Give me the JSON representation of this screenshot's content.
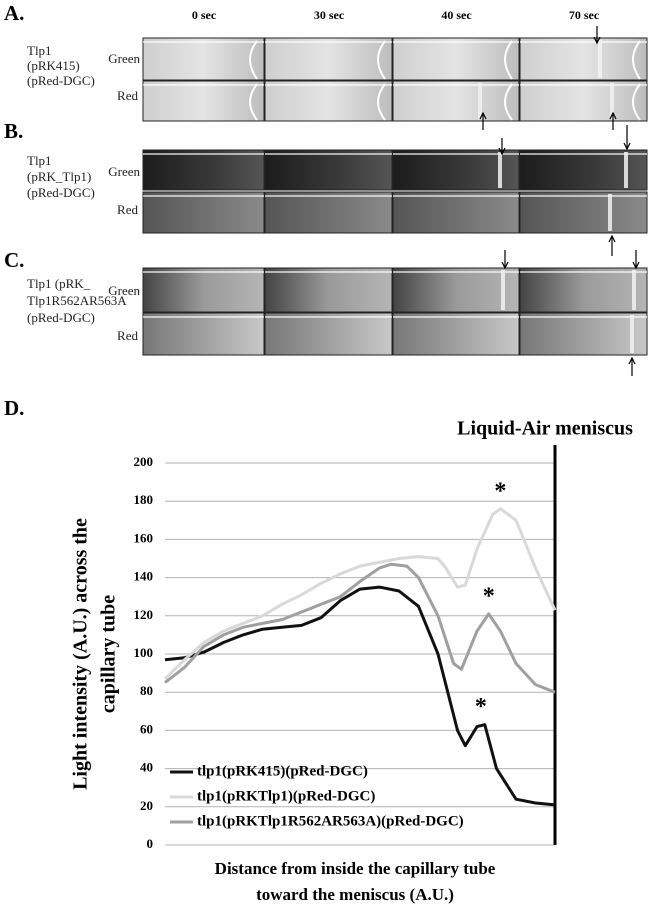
{
  "panels": {
    "A": {
      "label": "A.",
      "strain": [
        "Tlp1",
        "(pRK415)",
        "(pRed-DGC)"
      ]
    },
    "B": {
      "label": "B.",
      "strain": [
        "Tlp1",
        "(pRK_Tlp1)",
        "(pRed-DGC)"
      ]
    },
    "C": {
      "label": "C.",
      "strain": [
        "Tlp1 (pRK_",
        "Tlp1R562AR563A",
        "(pRed-DGC)"
      ]
    },
    "D": {
      "label": "D."
    },
    "times": [
      "0 sec",
      "30 sec",
      "40 sec",
      "70 sec"
    ],
    "channels": [
      "Green",
      "Red"
    ]
  },
  "chart_data": {
    "type": "line",
    "y_label": [
      "Light intensity (A.U.) across the",
      "capillary tube"
    ],
    "x_label": [
      "Distance from inside the capillary tube",
      "toward the meniscus (A.U.)"
    ],
    "meniscus_label": "Liquid-Air meniscus",
    "xlim": [
      0,
      100
    ],
    "ylim": [
      0,
      200
    ],
    "yticks": [
      0,
      20,
      40,
      60,
      80,
      100,
      120,
      140,
      160,
      180,
      200
    ],
    "grid": true,
    "series": [
      {
        "name": "tlp1(pRK415)(pRed-DGC)",
        "color": "#111111",
        "x": [
          0,
          5,
          10,
          15,
          20,
          25,
          30,
          35,
          40,
          45,
          50,
          55,
          60,
          65,
          70,
          75,
          77,
          80,
          82,
          85,
          90,
          95,
          100
        ],
        "values": [
          97,
          98,
          101,
          106,
          110,
          113,
          114,
          115,
          119,
          128,
          134,
          135,
          133,
          125,
          100,
          60,
          52,
          62,
          63,
          40,
          24,
          22,
          21
        ]
      },
      {
        "name": "tlp1(pRKTlp1)(pRed-DGC)",
        "color": "#d9d9d9",
        "x": [
          0,
          5,
          10,
          15,
          20,
          25,
          30,
          35,
          40,
          45,
          50,
          55,
          60,
          65,
          70,
          72,
          75,
          77,
          80,
          84,
          86,
          90,
          95,
          100
        ],
        "values": [
          87,
          97,
          106,
          112,
          116,
          120,
          126,
          131,
          137,
          142,
          146,
          148,
          150,
          151,
          150,
          145,
          135,
          136,
          155,
          173,
          176,
          170,
          145,
          123
        ]
      },
      {
        "name": "tlp1(pRKTlp1R562AR563A)(pRed-DGC)",
        "color": "#a0a0a0",
        "x": [
          0,
          5,
          10,
          15,
          20,
          25,
          30,
          35,
          40,
          45,
          50,
          55,
          58,
          62,
          65,
          70,
          74,
          76,
          80,
          83,
          86,
          90,
          95,
          100
        ],
        "values": [
          85,
          93,
          104,
          110,
          114,
          116,
          118,
          122,
          126,
          130,
          138,
          145,
          147,
          146,
          140,
          120,
          95,
          92,
          112,
          121,
          112,
          95,
          84,
          80
        ]
      }
    ],
    "annotations": [
      {
        "text": "*",
        "x": 81,
        "y": 63
      },
      {
        "text": "*",
        "x": 86,
        "y": 176
      },
      {
        "text": "*",
        "x": 83,
        "y": 121
      }
    ]
  }
}
